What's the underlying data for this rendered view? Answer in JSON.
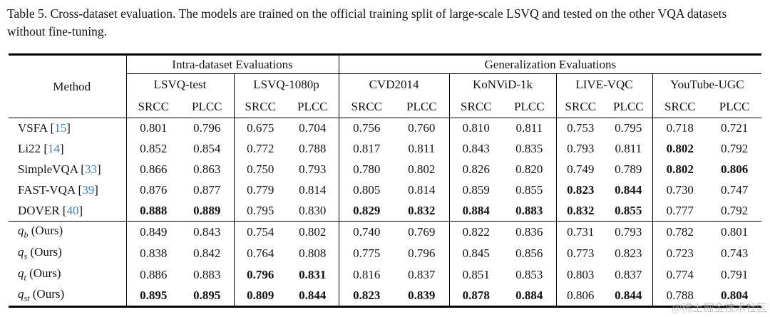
{
  "page": {
    "caption": "Table 5. Cross-dataset evaluation. The models are trained on the official training split of large-scale LSVQ and tested on the other VQA datasets without fine-tuning.",
    "watermark": "@稀土掘金技术社区"
  },
  "colors": {
    "citation_blue": "#3D7EBF",
    "rule_black": "#000000",
    "watermark_gray": "#B5B5B5"
  },
  "table": {
    "header": {
      "method_label": "Method",
      "groups": [
        {
          "label": "Intra-dataset Evaluations",
          "datasets": [
            "LSVQ-test",
            "LSVQ-1080p"
          ]
        },
        {
          "label": "Generalization Evaluations",
          "datasets": [
            "CVD2014",
            "KoNViD-1k",
            "LIVE-VQC",
            "YouTube-UGC"
          ]
        }
      ],
      "metrics": [
        "SRCC",
        "PLCC"
      ]
    },
    "sections": [
      [
        {
          "name": "VSFA",
          "cite": "15",
          "values": [
            "0.801",
            "0.796",
            "0.675",
            "0.704",
            "0.756",
            "0.760",
            "0.810",
            "0.811",
            "0.753",
            "0.795",
            "0.718",
            "0.721"
          ],
          "bold": []
        },
        {
          "name": "Li22",
          "cite": "14",
          "values": [
            "0.852",
            "0.854",
            "0.772",
            "0.788",
            "0.817",
            "0.811",
            "0.843",
            "0.835",
            "0.793",
            "0.811",
            "0.802",
            "0.792"
          ],
          "bold": [
            10
          ]
        },
        {
          "name": "SimpleVQA",
          "cite": "33",
          "values": [
            "0.866",
            "0.863",
            "0.750",
            "0.793",
            "0.780",
            "0.802",
            "0.826",
            "0.820",
            "0.749",
            "0.789",
            "0.802",
            "0.806"
          ],
          "bold": [
            10,
            11
          ]
        },
        {
          "name": "FAST-VQA",
          "cite": "39",
          "values": [
            "0.876",
            "0.877",
            "0.779",
            "0.814",
            "0.805",
            "0.814",
            "0.859",
            "0.855",
            "0.823",
            "0.844",
            "0.730",
            "0.747"
          ],
          "bold": [
            8,
            9
          ]
        },
        {
          "name": "DOVER",
          "cite": "40",
          "values": [
            "0.888",
            "0.889",
            "0.795",
            "0.830",
            "0.829",
            "0.832",
            "0.884",
            "0.883",
            "0.832",
            "0.855",
            "0.777",
            "0.792"
          ],
          "bold": [
            0,
            1,
            4,
            5,
            6,
            7,
            8,
            9
          ]
        }
      ],
      [
        {
          "name": "q",
          "sub": "b",
          "suffix": " (Ours)",
          "values": [
            "0.849",
            "0.843",
            "0.754",
            "0.802",
            "0.740",
            "0.769",
            "0.822",
            "0.836",
            "0.731",
            "0.793",
            "0.782",
            "0.801"
          ],
          "bold": []
        },
        {
          "name": "q",
          "sub": "s",
          "suffix": " (Ours)",
          "values": [
            "0.838",
            "0.842",
            "0.764",
            "0.808",
            "0.775",
            "0.796",
            "0.845",
            "0.856",
            "0.773",
            "0.823",
            "0.723",
            "0.743"
          ],
          "bold": []
        },
        {
          "name": "q",
          "sub": "t",
          "suffix": " (Ours)",
          "values": [
            "0.886",
            "0.883",
            "0.796",
            "0.831",
            "0.816",
            "0.837",
            "0.851",
            "0.853",
            "0.803",
            "0.837",
            "0.774",
            "0.791"
          ],
          "bold": [
            2,
            3
          ]
        },
        {
          "name": "q",
          "sub": "st",
          "suffix": " (Ours)",
          "values": [
            "0.895",
            "0.895",
            "0.809",
            "0.844",
            "0.823",
            "0.839",
            "0.878",
            "0.884",
            "0.806",
            "0.844",
            "0.788",
            "0.804"
          ],
          "bold": [
            0,
            1,
            2,
            3,
            4,
            5,
            6,
            7,
            9,
            11
          ]
        }
      ]
    ]
  }
}
